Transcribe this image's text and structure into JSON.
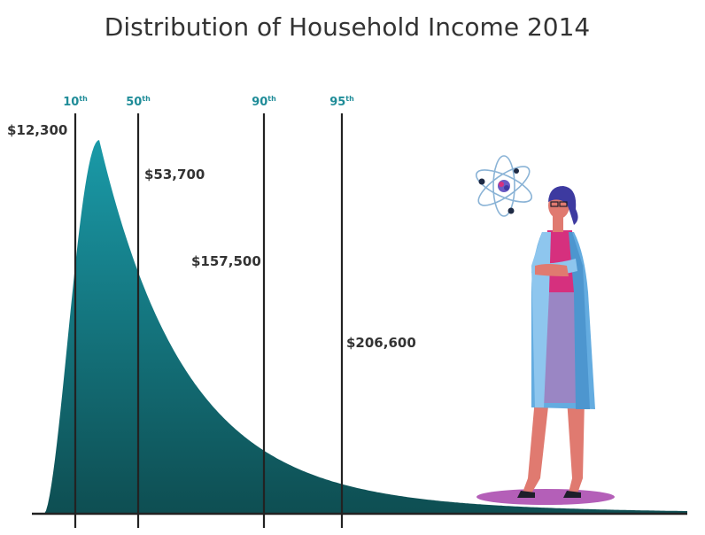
{
  "chart_data": {
    "type": "area",
    "title": "Distribution of Household Income 2014",
    "xlabel": "",
    "ylabel": "",
    "grid": false,
    "legend": "none",
    "colors": {
      "fill_top": "#1a9aa8",
      "fill_bottom": "#0e4e52",
      "line": "#222222",
      "percentile_text": "#1f8c98"
    },
    "percentiles": [
      {
        "rank": "10",
        "suffix": "th",
        "value": 12300,
        "label": "$12,300"
      },
      {
        "rank": "50",
        "suffix": "th",
        "value": 53700,
        "label": "$53,700"
      },
      {
        "rank": "90",
        "suffix": "th",
        "value": 157500,
        "label": "$157,500"
      },
      {
        "rank": "95",
        "suffix": "th",
        "value": 206600,
        "label": "$206,600"
      }
    ]
  },
  "illustration": {
    "name": "scientist-woman-with-atom-icon",
    "colors": {
      "coat": "#64ace0",
      "shirt": "#d6307e",
      "skirt": "#9a86c4",
      "hair": "#3d3aa0",
      "skin": "#e07a70",
      "shadow": "#b45fb8",
      "atom": "#2c4aa0"
    }
  }
}
